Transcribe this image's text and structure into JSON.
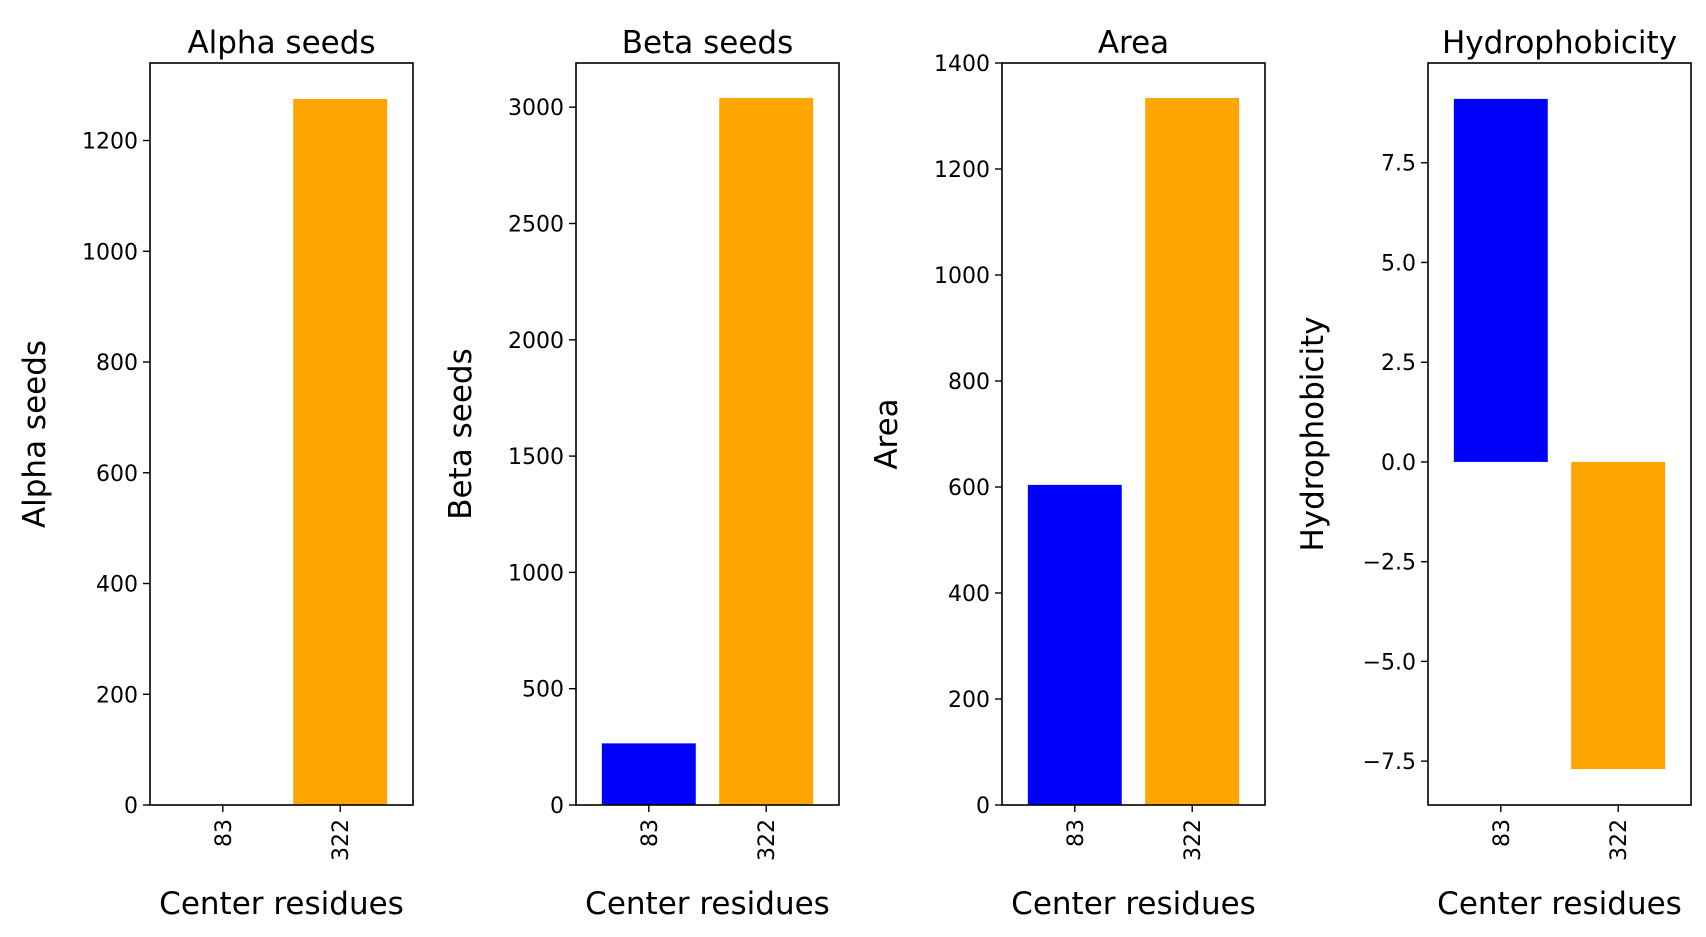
{
  "chart_data": [
    {
      "type": "bar",
      "title": "Alpha seeds",
      "xlabel": "Center residues",
      "ylabel": "Alpha seeds",
      "categories": [
        "83",
        "322"
      ],
      "values": [
        0,
        1275
      ],
      "colors": [
        "#0000ff",
        "#ffa500"
      ],
      "ylim": [
        0,
        1340
      ],
      "yticks": [
        0,
        200,
        400,
        600,
        800,
        1000,
        1200
      ],
      "ytick_labels": [
        "0",
        "200",
        "400",
        "600",
        "800",
        "1000",
        "1200"
      ],
      "grid": false
    },
    {
      "type": "bar",
      "title": "Beta seeds",
      "xlabel": "Center residues",
      "ylabel": "Beta seeds",
      "categories": [
        "83",
        "322"
      ],
      "values": [
        265,
        3040
      ],
      "colors": [
        "#0000ff",
        "#ffa500"
      ],
      "ylim": [
        0,
        3190
      ],
      "yticks": [
        0,
        500,
        1000,
        1500,
        2000,
        2500,
        3000
      ],
      "ytick_labels": [
        "0",
        "500",
        "1000",
        "1500",
        "2000",
        "2500",
        "3000"
      ],
      "grid": false
    },
    {
      "type": "bar",
      "title": "Area",
      "xlabel": "Center residues",
      "ylabel": "Area",
      "categories": [
        "83",
        "322"
      ],
      "values": [
        604,
        1334
      ],
      "colors": [
        "#0000ff",
        "#ffa500"
      ],
      "ylim": [
        0,
        1400
      ],
      "yticks": [
        0,
        200,
        400,
        600,
        800,
        1000,
        1200,
        1400
      ],
      "ytick_labels": [
        "0",
        "200",
        "400",
        "600",
        "800",
        "1000",
        "1200",
        "1400"
      ],
      "grid": false
    },
    {
      "type": "bar",
      "title": "Hydrophobicity",
      "xlabel": "Center residues",
      "ylabel": "Hydrophobicity",
      "categories": [
        "83",
        "322"
      ],
      "values": [
        9.1,
        -7.7
      ],
      "colors": [
        "#0000ff",
        "#ffa500"
      ],
      "ylim": [
        -8.6,
        10.0
      ],
      "yticks": [
        -7.5,
        -5.0,
        -2.5,
        0.0,
        2.5,
        5.0,
        7.5
      ],
      "ytick_labels": [
        "−7.5",
        "−5.0",
        "−2.5",
        "0.0",
        "2.5",
        "5.0",
        "7.5"
      ],
      "grid": false
    }
  ]
}
